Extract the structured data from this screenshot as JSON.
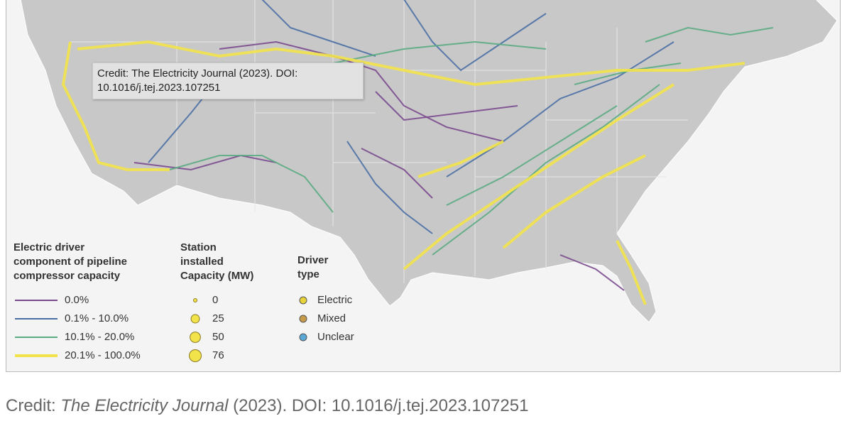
{
  "tooltip": "Credit: The Electricity Journal (2023). DOI: 10.1016/j.tej.2023.107251",
  "legend": {
    "line_title": [
      "Electric driver",
      "component of pipeline",
      "compressor capacity"
    ],
    "line_items": [
      {
        "label": "0.0%",
        "color": "#7a4a8e"
      },
      {
        "label": "0.1% - 10.0%",
        "color": "#4a6fa5"
      },
      {
        "label": "10.1% - 20.0%",
        "color": "#5aab82"
      },
      {
        "label": "20.1% - 100.0%",
        "color": "#f2e34a"
      }
    ],
    "size_title": [
      "Station",
      "installed",
      "Capacity (MW)"
    ],
    "size_items": [
      0,
      25,
      50,
      76
    ],
    "size_color": "#f2e34a",
    "driver_title": [
      "Driver",
      "type"
    ],
    "driver_items": [
      {
        "label": "Electric",
        "color": "#e8d23a"
      },
      {
        "label": "Mixed",
        "color": "#c79a4a"
      },
      {
        "label": "Unclear",
        "color": "#5aa8d8"
      }
    ]
  },
  "caption": {
    "prefix": "Credit: ",
    "journal": "The Electricity Journal",
    "suffix": " (2023). DOI: 10.1016/j.tej.2023.107251"
  }
}
